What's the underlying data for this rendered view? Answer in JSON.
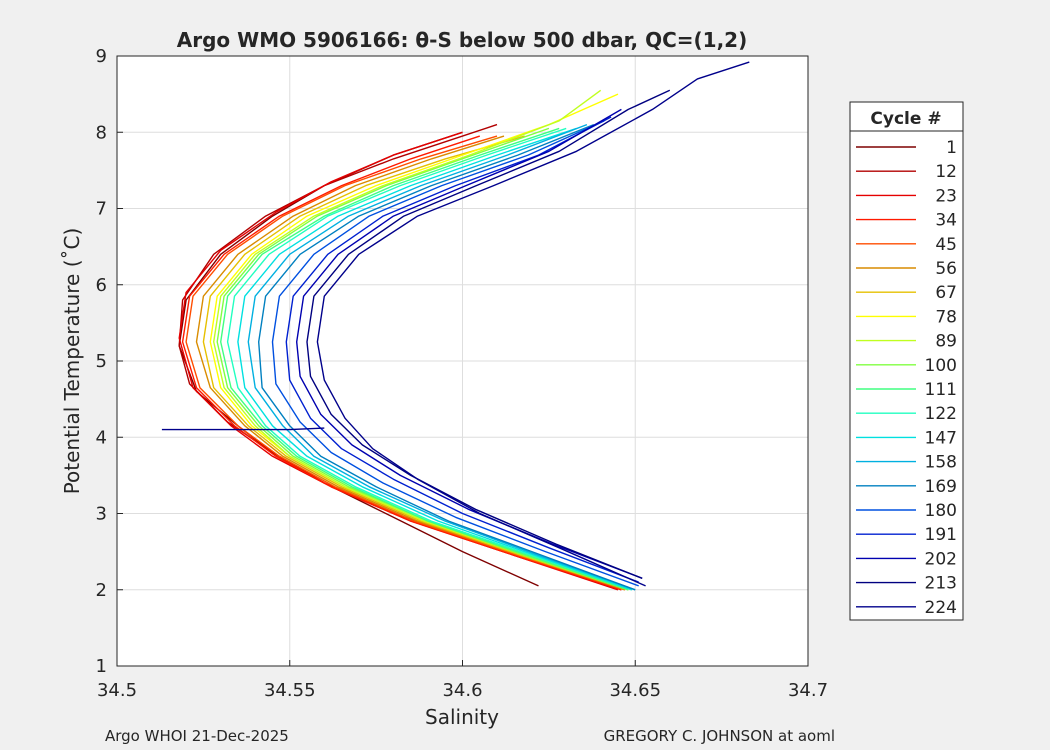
{
  "chart_data": {
    "type": "line",
    "title": "Argo WMO 5906166: θ-S below 500 dbar,  QC=(1,2)",
    "xlabel": "Salinity",
    "ylabel": "Potential Temperature (˚C)",
    "xlim": [
      34.5,
      34.7
    ],
    "ylim": [
      1,
      9
    ],
    "xticks": [
      "34.5",
      "34.55",
      "34.6",
      "34.65",
      "34.7"
    ],
    "yticks": [
      "1",
      "2",
      "3",
      "4",
      "5",
      "6",
      "7",
      "8",
      "9"
    ],
    "grid": true,
    "legend": {
      "title": "Cycle #",
      "placement": "outside-right",
      "entries": [
        {
          "label": "1",
          "color": "#7f0000"
        },
        {
          "label": "12",
          "color": "#b20000"
        },
        {
          "label": "23",
          "color": "#e50000"
        },
        {
          "label": "34",
          "color": "#ff1a00"
        },
        {
          "label": "45",
          "color": "#ff4d00"
        },
        {
          "label": "56",
          "color": "#d98c00"
        },
        {
          "label": "67",
          "color": "#e6c000"
        },
        {
          "label": "78",
          "color": "#ffff00"
        },
        {
          "label": "89",
          "color": "#c0ff20"
        },
        {
          "label": "100",
          "color": "#80ff40"
        },
        {
          "label": "111",
          "color": "#40ff80"
        },
        {
          "label": "122",
          "color": "#20ffc0"
        },
        {
          "label": "147",
          "color": "#00e0e0"
        },
        {
          "label": "158",
          "color": "#00b0e0"
        },
        {
          "label": "169",
          "color": "#0080c0"
        },
        {
          "label": "180",
          "color": "#0050e0"
        },
        {
          "label": "191",
          "color": "#0020d0"
        },
        {
          "label": "202",
          "color": "#0000b0"
        },
        {
          "label": "213",
          "color": "#000080"
        },
        {
          "label": "224",
          "color": "#00008b"
        }
      ]
    },
    "series": [
      {
        "color": "#7f0000",
        "x": [
          34.622,
          34.6,
          34.58,
          34.56,
          34.545,
          34.535,
          34.523,
          34.518,
          34.52,
          34.53,
          34.545,
          34.56,
          34.58,
          34.6
        ],
        "y": [
          2.05,
          2.5,
          2.95,
          3.4,
          3.8,
          4.15,
          4.6,
          5.2,
          5.8,
          6.4,
          6.9,
          7.3,
          7.7,
          8.0
        ]
      },
      {
        "color": "#b20000",
        "x": [
          34.646,
          34.61,
          34.58,
          34.56,
          34.545,
          34.532,
          34.521,
          34.518,
          34.519,
          34.528,
          34.543,
          34.56,
          34.58,
          34.6,
          34.61
        ],
        "y": [
          2.0,
          2.55,
          3.0,
          3.4,
          3.8,
          4.2,
          4.7,
          5.2,
          5.8,
          6.4,
          6.9,
          7.3,
          7.65,
          7.95,
          8.1
        ]
      },
      {
        "color": "#e50000",
        "x": [
          34.645,
          34.615,
          34.585,
          34.562,
          34.545,
          34.533,
          34.522,
          34.518,
          34.52,
          34.53,
          34.546,
          34.562,
          34.58,
          34.6
        ],
        "y": [
          2.0,
          2.45,
          2.9,
          3.35,
          3.75,
          4.15,
          4.65,
          5.3,
          5.9,
          6.45,
          6.95,
          7.35,
          7.7,
          8.0
        ]
      },
      {
        "color": "#ff1a00",
        "x": [
          34.646,
          34.615,
          34.585,
          34.562,
          34.546,
          34.534,
          34.523,
          34.519,
          34.521,
          34.531,
          34.547,
          34.565,
          34.585,
          34.605
        ],
        "y": [
          2.0,
          2.45,
          2.9,
          3.35,
          3.75,
          4.15,
          4.65,
          5.25,
          5.85,
          6.4,
          6.9,
          7.3,
          7.65,
          7.95
        ]
      },
      {
        "color": "#ff4d00",
        "x": [
          34.647,
          34.616,
          34.586,
          34.563,
          34.547,
          34.535,
          34.524,
          34.52,
          34.522,
          34.532,
          34.548,
          34.566,
          34.588,
          34.61
        ],
        "y": [
          2.0,
          2.45,
          2.9,
          3.35,
          3.75,
          4.15,
          4.65,
          5.25,
          5.85,
          6.4,
          6.9,
          7.3,
          7.65,
          7.95
        ]
      },
      {
        "color": "#d98c00",
        "x": [
          34.647,
          34.617,
          34.587,
          34.564,
          34.548,
          34.537,
          34.527,
          34.523,
          34.525,
          34.535,
          34.551,
          34.569,
          34.591,
          34.612
        ],
        "y": [
          2.0,
          2.45,
          2.9,
          3.35,
          3.75,
          4.15,
          4.65,
          5.25,
          5.85,
          6.4,
          6.9,
          7.3,
          7.65,
          7.95
        ]
      },
      {
        "color": "#e6c000",
        "x": [
          34.648,
          34.617,
          34.588,
          34.565,
          34.549,
          34.538,
          34.528,
          34.525,
          34.527,
          34.537,
          34.553,
          34.572,
          34.595,
          34.618
        ],
        "y": [
          2.0,
          2.45,
          2.9,
          3.35,
          3.75,
          4.15,
          4.65,
          5.25,
          5.85,
          6.4,
          6.9,
          7.3,
          7.65,
          7.95
        ]
      },
      {
        "color": "#ffff00",
        "x": [
          34.648,
          34.618,
          34.589,
          34.566,
          34.55,
          34.539,
          34.53,
          34.527,
          34.529,
          34.539,
          34.555,
          34.575,
          34.6,
          34.625,
          34.645
        ],
        "y": [
          2.0,
          2.45,
          2.9,
          3.35,
          3.75,
          4.15,
          4.65,
          5.25,
          5.85,
          6.4,
          6.9,
          7.3,
          7.7,
          8.1,
          8.5
        ]
      },
      {
        "color": "#c0ff20",
        "x": [
          34.648,
          34.618,
          34.589,
          34.566,
          34.55,
          34.54,
          34.531,
          34.528,
          34.53,
          34.54,
          34.557,
          34.577,
          34.602,
          34.628,
          34.64
        ],
        "y": [
          2.0,
          2.45,
          2.9,
          3.35,
          3.75,
          4.15,
          4.65,
          5.25,
          5.85,
          6.4,
          6.9,
          7.3,
          7.7,
          8.15,
          8.55
        ]
      },
      {
        "color": "#80ff40",
        "x": [
          34.648,
          34.618,
          34.59,
          34.567,
          34.551,
          34.541,
          34.532,
          34.529,
          34.531,
          34.541,
          34.558,
          34.578,
          34.603,
          34.625
        ],
        "y": [
          2.0,
          2.45,
          2.9,
          3.35,
          3.75,
          4.15,
          4.65,
          5.25,
          5.85,
          6.4,
          6.9,
          7.3,
          7.7,
          8.05
        ]
      },
      {
        "color": "#40ff80",
        "x": [
          34.648,
          34.619,
          34.59,
          34.568,
          34.552,
          34.542,
          34.533,
          34.53,
          34.532,
          34.542,
          34.56,
          34.58,
          34.605,
          34.628
        ],
        "y": [
          2.0,
          2.45,
          2.9,
          3.35,
          3.75,
          4.15,
          4.65,
          5.25,
          5.85,
          6.4,
          6.9,
          7.3,
          7.7,
          8.05
        ]
      },
      {
        "color": "#20ffc0",
        "x": [
          34.649,
          34.62,
          34.591,
          34.569,
          34.553,
          34.543,
          34.535,
          34.532,
          34.534,
          34.544,
          34.561,
          34.582,
          34.607,
          34.63
        ],
        "y": [
          2.0,
          2.45,
          2.9,
          3.35,
          3.75,
          4.15,
          4.65,
          5.25,
          5.85,
          6.4,
          6.9,
          7.3,
          7.7,
          8.05
        ]
      },
      {
        "color": "#00e0e0",
        "x": [
          34.649,
          34.621,
          34.593,
          34.571,
          34.555,
          34.545,
          34.537,
          34.535,
          34.537,
          34.547,
          34.564,
          34.585,
          34.61,
          34.633
        ],
        "y": [
          2.0,
          2.45,
          2.9,
          3.35,
          3.75,
          4.15,
          4.65,
          5.25,
          5.85,
          6.4,
          6.9,
          7.3,
          7.7,
          8.05
        ]
      },
      {
        "color": "#00b0e0",
        "x": [
          34.65,
          34.622,
          34.595,
          34.573,
          34.557,
          34.548,
          34.54,
          34.538,
          34.54,
          34.55,
          34.567,
          34.588,
          34.613,
          34.636
        ],
        "y": [
          2.0,
          2.45,
          2.9,
          3.35,
          3.75,
          4.15,
          4.65,
          5.25,
          5.85,
          6.4,
          6.9,
          7.3,
          7.7,
          8.1
        ]
      },
      {
        "color": "#0080c0",
        "x": [
          34.65,
          34.623,
          34.596,
          34.575,
          34.559,
          34.55,
          34.542,
          34.541,
          34.543,
          34.553,
          34.57,
          34.591,
          34.616,
          34.638
        ],
        "y": [
          2.0,
          2.45,
          2.9,
          3.35,
          3.75,
          4.15,
          4.65,
          5.25,
          5.85,
          6.4,
          6.9,
          7.3,
          7.7,
          8.1
        ]
      },
      {
        "color": "#0050e0",
        "x": [
          34.651,
          34.624,
          34.598,
          34.577,
          34.562,
          34.553,
          34.546,
          34.545,
          34.547,
          34.557,
          34.573,
          34.594,
          34.619,
          34.641
        ],
        "y": [
          2.05,
          2.5,
          2.95,
          3.4,
          3.8,
          4.2,
          4.7,
          5.25,
          5.85,
          6.4,
          6.9,
          7.3,
          7.7,
          8.15
        ]
      },
      {
        "color": "#0020d0",
        "x": [
          34.651,
          34.625,
          34.6,
          34.58,
          34.565,
          34.556,
          34.55,
          34.549,
          34.551,
          34.561,
          34.577,
          34.598,
          34.622,
          34.643
        ],
        "y": [
          2.1,
          2.55,
          3.0,
          3.45,
          3.85,
          4.25,
          4.75,
          5.25,
          5.85,
          6.4,
          6.9,
          7.3,
          7.7,
          8.2
        ]
      },
      {
        "color": "#0000b0",
        "x": [
          34.652,
          34.626,
          34.602,
          34.582,
          34.568,
          34.559,
          34.553,
          34.552,
          34.554,
          34.564,
          34.58,
          34.601,
          34.625,
          34.646
        ],
        "y": [
          2.15,
          2.6,
          3.05,
          3.5,
          3.9,
          4.3,
          4.8,
          5.25,
          5.85,
          6.4,
          6.9,
          7.3,
          7.75,
          8.3
        ]
      },
      {
        "color": "#000080",
        "x": [
          34.652,
          34.627,
          34.604,
          34.585,
          34.571,
          34.562,
          34.556,
          34.555,
          34.557,
          34.567,
          34.583,
          34.604,
          34.628,
          34.648,
          34.66
        ],
        "y": [
          2.15,
          2.6,
          3.05,
          3.5,
          3.9,
          4.3,
          4.8,
          5.25,
          5.85,
          6.4,
          6.9,
          7.3,
          7.75,
          8.3,
          8.55
        ]
      },
      {
        "color": "#00008b",
        "x": [
          34.653,
          34.628,
          34.605,
          34.587,
          34.574,
          34.566,
          34.56,
          34.558,
          34.56,
          34.57,
          34.587,
          34.609,
          34.633,
          34.655,
          34.668,
          34.683
        ],
        "y": [
          2.05,
          2.55,
          3.0,
          3.45,
          3.85,
          4.25,
          4.75,
          5.25,
          5.85,
          6.4,
          6.9,
          7.3,
          7.75,
          8.3,
          8.7,
          8.92
        ]
      },
      {
        "color": "#00008b",
        "x": [
          34.513,
          34.55,
          34.56
        ],
        "y": [
          4.1,
          4.1,
          4.12
        ]
      }
    ]
  },
  "footer": {
    "left": "Argo WHOI 21-Dec-2025",
    "right": "GREGORY C. JOHNSON at aoml"
  }
}
